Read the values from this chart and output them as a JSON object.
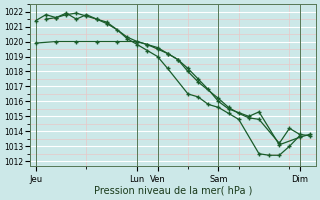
{
  "background_color": "#cce8e8",
  "grid_major_color": "#ffffff",
  "grid_minor_color": "#e8c8c8",
  "line_color": "#1a5c2a",
  "marker_color": "#1a5c2a",
  "ylabel_min": 1012,
  "ylabel_max": 1022,
  "xlabel": "Pression niveau de la mer( hPa )",
  "xtick_labels": [
    "Jeu",
    "Lun",
    "Ven",
    "Sam",
    "Dim"
  ],
  "xtick_positions": [
    0,
    5,
    6,
    9,
    13
  ],
  "x_min": -0.3,
  "x_max": 13.8,
  "series": [
    {
      "x": [
        0.0,
        0.5,
        1.0,
        1.5,
        2.0,
        2.5,
        3.0,
        3.5,
        4.5,
        5.0,
        5.5,
        6.0,
        6.5,
        7.0,
        7.5,
        8.0,
        9.0,
        9.5,
        10.0,
        10.5,
        11.0,
        12.0,
        12.5,
        13.0,
        13.5
      ],
      "y": [
        1021.4,
        1021.8,
        1021.6,
        1021.9,
        1021.5,
        1021.8,
        1021.5,
        1021.3,
        1020.3,
        1020.0,
        1019.8,
        1019.5,
        1019.2,
        1018.8,
        1018.0,
        1017.3,
        1016.2,
        1015.6,
        1015.2,
        1014.9,
        1014.8,
        1013.2,
        1014.2,
        1013.8,
        1013.7
      ]
    },
    {
      "x": [
        0.0,
        1.0,
        2.0,
        3.0,
        4.0,
        5.0,
        5.5,
        6.0,
        6.5,
        7.0,
        7.5,
        8.0,
        8.5,
        9.0,
        9.5,
        10.5,
        11.0,
        12.0,
        13.0,
        13.5
      ],
      "y": [
        1019.9,
        1020.0,
        1020.0,
        1020.0,
        1020.0,
        1020.0,
        1019.8,
        1019.6,
        1019.2,
        1018.8,
        1018.2,
        1017.5,
        1016.8,
        1016.0,
        1015.5,
        1015.0,
        1015.3,
        1013.1,
        1013.6,
        1013.8
      ]
    },
    {
      "x": [
        0.5,
        1.0,
        1.5,
        2.0,
        2.5,
        3.0,
        3.5,
        4.0,
        4.5,
        5.0,
        5.5,
        6.0,
        6.5,
        7.5,
        8.0,
        8.5,
        9.0,
        9.5,
        10.0,
        11.0,
        11.5,
        12.0,
        12.5,
        13.0
      ],
      "y": [
        1021.5,
        1021.6,
        1021.8,
        1021.9,
        1021.7,
        1021.5,
        1021.2,
        1020.8,
        1020.2,
        1019.8,
        1019.4,
        1019.0,
        1018.2,
        1016.5,
        1016.3,
        1015.8,
        1015.6,
        1015.2,
        1014.8,
        1012.5,
        1012.4,
        1012.4,
        1013.0,
        1013.7
      ]
    }
  ]
}
